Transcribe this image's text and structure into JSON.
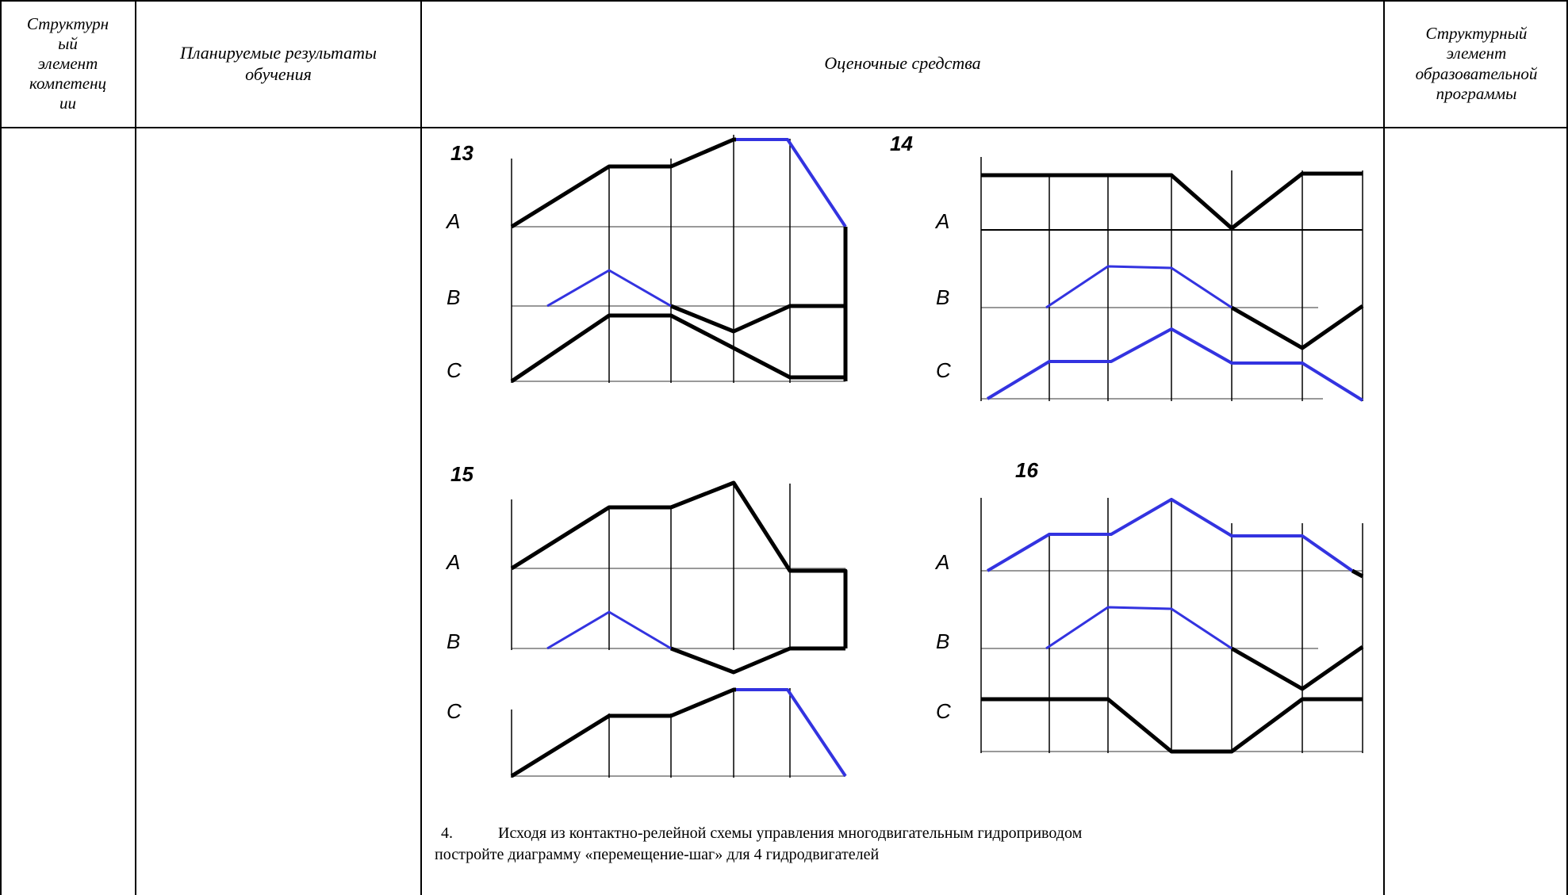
{
  "table": {
    "headers": [
      "Структурный элемент компетенции",
      "Планируемые результаты обучения",
      "Оценочные средства",
      "Структурный элемент образовательной программы"
    ],
    "header_lines": {
      "col1": [
        "Структурн",
        "ый",
        "элемент",
        "компетенц",
        "ии"
      ],
      "col2": [
        "Планируемые результаты",
        "обучения"
      ],
      "col3": [
        "Оценочные средства"
      ],
      "col4": [
        "Структурный",
        "элемент",
        "образовательной",
        "программы"
      ]
    }
  },
  "diagrams": [
    {
      "number": "13",
      "rows": [
        "A",
        "B",
        "C"
      ]
    },
    {
      "number": "14",
      "rows": [
        "A",
        "B",
        "C"
      ]
    },
    {
      "number": "15",
      "rows": [
        "A",
        "B",
        "C"
      ]
    },
    {
      "number": "16",
      "rows": [
        "A",
        "B",
        "C"
      ]
    }
  ],
  "colors": {
    "black_line": "#000000",
    "blue_line": "#3333e0",
    "grid": "#999999"
  },
  "question": {
    "number": "4.",
    "text_line1": "Исходя из контактно-релейной схемы управления многодвигательным гидроприводом",
    "text_line2": "постройте диаграмму «перемещение-шаг» для 4 гидродвигателей"
  }
}
